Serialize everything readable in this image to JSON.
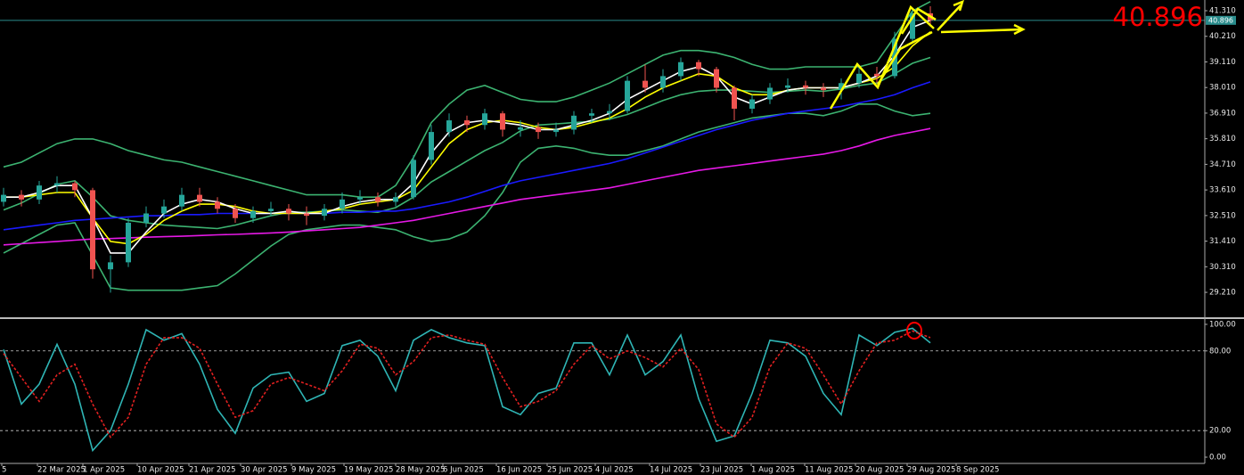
{
  "chart_data": [
    {
      "type": "candlestick",
      "up_color": "#26a69a",
      "down_color": "#ef5350",
      "candles": [
        [
          33.1,
          33.7,
          32.9,
          33.4
        ],
        [
          33.4,
          33.6,
          32.9,
          33.2
        ],
        [
          33.2,
          34.0,
          33.0,
          33.8
        ],
        [
          33.8,
          34.2,
          33.5,
          33.9
        ],
        [
          33.9,
          34.0,
          33.3,
          33.6
        ],
        [
          33.6,
          33.7,
          29.8,
          30.2
        ],
        [
          30.2,
          30.8,
          29.2,
          30.5
        ],
        [
          30.5,
          32.4,
          30.3,
          32.2
        ],
        [
          32.2,
          32.9,
          32.0,
          32.6
        ],
        [
          32.6,
          33.2,
          32.4,
          32.9
        ],
        [
          32.9,
          33.7,
          32.7,
          33.4
        ],
        [
          33.4,
          33.7,
          32.9,
          33.1
        ],
        [
          33.1,
          33.3,
          32.6,
          32.8
        ],
        [
          32.8,
          33.0,
          32.2,
          32.4
        ],
        [
          32.4,
          32.9,
          32.2,
          32.7
        ],
        [
          32.7,
          33.1,
          32.5,
          32.8
        ],
        [
          32.8,
          33.0,
          32.3,
          32.6
        ],
        [
          32.6,
          32.9,
          32.1,
          32.5
        ],
        [
          32.5,
          33.0,
          32.3,
          32.8
        ],
        [
          32.8,
          33.5,
          32.6,
          33.2
        ],
        [
          33.2,
          33.6,
          33.0,
          33.3
        ],
        [
          33.3,
          33.5,
          32.9,
          33.1
        ],
        [
          33.1,
          33.5,
          32.9,
          33.3
        ],
        [
          33.3,
          35.1,
          33.2,
          34.9
        ],
        [
          34.9,
          36.4,
          34.7,
          36.1
        ],
        [
          36.1,
          36.9,
          35.9,
          36.6
        ],
        [
          36.6,
          36.8,
          36.1,
          36.4
        ],
        [
          36.4,
          37.1,
          36.2,
          36.9
        ],
        [
          36.9,
          37.0,
          35.9,
          36.2
        ],
        [
          36.2,
          36.6,
          35.9,
          36.3
        ],
        [
          36.3,
          36.5,
          35.8,
          36.1
        ],
        [
          36.1,
          36.5,
          35.9,
          36.2
        ],
        [
          36.2,
          37.0,
          36.0,
          36.8
        ],
        [
          36.8,
          37.1,
          36.5,
          36.9
        ],
        [
          36.9,
          37.3,
          36.6,
          37.0
        ],
        [
          37.0,
          38.5,
          36.9,
          38.3
        ],
        [
          38.3,
          39.0,
          37.8,
          38.0
        ],
        [
          38.0,
          38.8,
          37.8,
          38.5
        ],
        [
          38.5,
          39.3,
          38.3,
          39.1
        ],
        [
          39.1,
          39.2,
          38.5,
          38.8
        ],
        [
          38.8,
          38.9,
          37.8,
          38.0
        ],
        [
          38.0,
          38.1,
          36.6,
          37.1
        ],
        [
          37.1,
          37.7,
          36.9,
          37.5
        ],
        [
          37.5,
          38.2,
          37.3,
          38.0
        ],
        [
          38.0,
          38.4,
          37.8,
          38.1
        ],
        [
          38.1,
          38.3,
          37.7,
          38.0
        ],
        [
          38.0,
          38.2,
          37.6,
          37.9
        ],
        [
          37.9,
          38.4,
          37.5,
          38.2
        ],
        [
          38.2,
          38.9,
          38.0,
          38.6
        ],
        [
          38.6,
          38.9,
          38.2,
          38.5
        ],
        [
          38.5,
          40.4,
          38.4,
          40.1
        ],
        [
          40.1,
          41.4,
          39.9,
          41.2
        ],
        [
          41.2,
          41.5,
          40.7,
          40.9
        ]
      ],
      "series": [
        {
          "color": "#3cb371",
          "values": [
            34.6,
            34.8,
            35.2,
            35.6,
            35.8,
            35.8,
            35.6,
            35.3,
            35.1,
            34.9,
            34.8,
            34.6,
            34.4,
            34.2,
            34.0,
            33.8,
            33.6,
            33.4,
            33.4,
            33.4,
            33.3,
            33.3,
            33.8,
            35.0,
            36.5,
            37.3,
            37.9,
            38.1,
            37.8,
            37.5,
            37.4,
            37.4,
            37.6,
            37.9,
            38.2,
            38.6,
            39.0,
            39.4,
            39.6,
            39.6,
            39.5,
            39.3,
            39.0,
            38.8,
            38.8,
            38.9,
            38.9,
            38.9,
            38.9,
            39.1,
            40.2,
            41.3,
            41.7
          ]
        },
        {
          "color": "#3cb371",
          "values": [
            32.75,
            33.05,
            33.45,
            33.85,
            34.0,
            33.3,
            32.5,
            32.3,
            32.2,
            32.1,
            32.05,
            32.0,
            31.95,
            32.1,
            32.3,
            32.5,
            32.65,
            32.65,
            32.7,
            32.75,
            32.7,
            32.65,
            32.85,
            33.3,
            33.95,
            34.4,
            34.85,
            35.3,
            35.65,
            36.15,
            36.4,
            36.45,
            36.5,
            36.55,
            36.65,
            36.85,
            37.15,
            37.45,
            37.7,
            37.85,
            37.9,
            37.9,
            37.85,
            37.8,
            37.85,
            37.9,
            37.85,
            37.95,
            38.1,
            38.2,
            38.6,
            39.05,
            39.3
          ]
        },
        {
          "color": "#3cb371",
          "values": [
            30.9,
            31.3,
            31.7,
            32.1,
            32.2,
            30.8,
            29.4,
            29.3,
            29.3,
            29.3,
            29.3,
            29.4,
            29.5,
            30.0,
            30.6,
            31.2,
            31.7,
            31.9,
            32.0,
            32.1,
            32.1,
            32.0,
            31.9,
            31.6,
            31.4,
            31.5,
            31.8,
            32.5,
            33.5,
            34.8,
            35.4,
            35.5,
            35.4,
            35.2,
            35.1,
            35.1,
            35.3,
            35.5,
            35.8,
            36.1,
            36.3,
            36.5,
            36.7,
            36.8,
            36.9,
            36.9,
            36.8,
            37.0,
            37.3,
            37.3,
            37.0,
            36.8,
            36.9
          ]
        },
        {
          "color": "#e619e6",
          "values": [
            31.25,
            31.3,
            31.35,
            31.4,
            31.45,
            31.5,
            31.52,
            31.55,
            31.58,
            31.6,
            31.62,
            31.65,
            31.68,
            31.7,
            31.73,
            31.76,
            31.8,
            31.85,
            31.9,
            31.95,
            32.0,
            32.1,
            32.2,
            32.3,
            32.45,
            32.6,
            32.75,
            32.9,
            33.05,
            33.2,
            33.3,
            33.4,
            33.5,
            33.6,
            33.7,
            33.85,
            34.0,
            34.15,
            34.3,
            34.45,
            34.55,
            34.65,
            34.75,
            34.85,
            34.95,
            35.05,
            35.15,
            35.3,
            35.5,
            35.75,
            35.95,
            36.1,
            36.25
          ]
        },
        {
          "color": "#1a1aff",
          "values": [
            31.9,
            32.0,
            32.1,
            32.2,
            32.3,
            32.35,
            32.4,
            32.45,
            32.5,
            32.5,
            32.55,
            32.55,
            32.6,
            32.6,
            32.6,
            32.6,
            32.6,
            32.6,
            32.6,
            32.65,
            32.65,
            32.7,
            32.7,
            32.8,
            32.95,
            33.1,
            33.3,
            33.55,
            33.8,
            34.0,
            34.15,
            34.3,
            34.45,
            34.6,
            34.75,
            34.95,
            35.2,
            35.45,
            35.7,
            35.95,
            36.2,
            36.4,
            36.6,
            36.75,
            36.9,
            37.0,
            37.1,
            37.2,
            37.35,
            37.5,
            37.7,
            38.0,
            38.25
          ]
        },
        {
          "color": "#ffff00",
          "values": [
            33.3,
            33.3,
            33.4,
            33.5,
            33.5,
            32.4,
            31.4,
            31.3,
            31.7,
            32.3,
            32.7,
            33.0,
            33.0,
            32.9,
            32.7,
            32.6,
            32.6,
            32.6,
            32.7,
            32.8,
            33.0,
            33.1,
            33.2,
            33.6,
            34.6,
            35.6,
            36.2,
            36.5,
            36.6,
            36.5,
            36.3,
            36.2,
            36.3,
            36.5,
            36.7,
            37.1,
            37.6,
            38.0,
            38.3,
            38.6,
            38.5,
            38.0,
            37.7,
            37.7,
            37.9,
            38.0,
            38.0,
            38.0,
            38.2,
            38.4,
            38.9,
            39.8,
            40.4
          ]
        },
        {
          "color": "#ffffff",
          "values": [
            33.3,
            33.3,
            33.5,
            33.8,
            33.8,
            32.4,
            30.9,
            30.9,
            31.8,
            32.6,
            33.0,
            33.2,
            33.1,
            32.8,
            32.6,
            32.6,
            32.7,
            32.6,
            32.6,
            32.9,
            33.1,
            33.2,
            33.2,
            33.9,
            35.2,
            36.1,
            36.5,
            36.6,
            36.5,
            36.4,
            36.2,
            36.2,
            36.4,
            36.6,
            36.9,
            37.5,
            37.9,
            38.3,
            38.7,
            38.9,
            38.5,
            37.6,
            37.3,
            37.6,
            37.9,
            38.0,
            38.0,
            38.0,
            38.2,
            38.5,
            39.4,
            40.6,
            40.9
          ]
        }
      ],
      "current_price": {
        "value": 40.896,
        "label": "40.896"
      },
      "price_line_color": "#2a8c8c",
      "xlim": [
        -0.2,
        67.4
      ],
      "xticks": [
        {
          "value": -0.1,
          "label": "5"
        },
        {
          "value": 1.9,
          "label": "22 Mar 2025"
        },
        {
          "value": 4.45,
          "label": "1 Apr 2025"
        },
        {
          "value": 7.5,
          "label": "10 Apr 2025"
        },
        {
          "value": 10.4,
          "label": "21 Apr 2025"
        },
        {
          "value": 13.3,
          "label": "30 Apr 2025"
        },
        {
          "value": 16.15,
          "label": "9 May 2025"
        },
        {
          "value": 19.1,
          "label": "19 May 2025"
        },
        {
          "value": 22,
          "label": "28 May 2025"
        },
        {
          "value": 24.65,
          "label": "6 Jun 2025"
        },
        {
          "value": 27.65,
          "label": "16 Jun 2025"
        },
        {
          "value": 30.5,
          "label": "25 Jun 2025"
        },
        {
          "value": 33.2,
          "label": "4 Jul 2025"
        },
        {
          "value": 36.25,
          "label": "14 Jul 2025"
        },
        {
          "value": 39.1,
          "label": "23 Jul 2025"
        },
        {
          "value": 41.95,
          "label": "1 Aug 2025"
        },
        {
          "value": 44.95,
          "label": "11 Aug 2025"
        },
        {
          "value": 47.8,
          "label": "20 Aug 2025"
        },
        {
          "value": 50.7,
          "label": "29 Aug 2025"
        },
        {
          "value": 53.45,
          "label": "8 Sep 2025"
        }
      ],
      "ylim": [
        28.14,
        41.77
      ],
      "yticks": [
        {
          "value": 41.31,
          "label": "41.310"
        },
        {
          "value": 40.21,
          "label": "40.210"
        },
        {
          "value": 39.11,
          "label": "39.110"
        },
        {
          "value": 38.01,
          "label": "38.010"
        },
        {
          "value": 36.91,
          "label": "36.910"
        },
        {
          "value": 35.81,
          "label": "35.810"
        },
        {
          "value": 34.71,
          "label": "34.710"
        },
        {
          "value": 33.61,
          "label": "33.610"
        },
        {
          "value": 32.51,
          "label": "32.510"
        },
        {
          "value": 31.41,
          "label": "31.410"
        },
        {
          "value": 30.31,
          "label": "30.310"
        },
        {
          "value": 29.21,
          "label": "29.210"
        }
      ]
    },
    {
      "type": "line",
      "series": [
        {
          "color": "#2fb5b5",
          "values": [
            81,
            40,
            55,
            85,
            55,
            5,
            20,
            55,
            96,
            88,
            93,
            70,
            36,
            18,
            52,
            62,
            64,
            42,
            48,
            84,
            88,
            76,
            50,
            88,
            96,
            90,
            86,
            84,
            38,
            32,
            48,
            52,
            86,
            86,
            62,
            92,
            62,
            72,
            92,
            44,
            12,
            16,
            48,
            88,
            86,
            76,
            48,
            32,
            92,
            84,
            94,
            97,
            86
          ]
        },
        {
          "color": "#e02020",
          "dashed": true,
          "values": [
            78,
            60,
            42,
            62,
            70,
            40,
            15,
            30,
            70,
            90,
            90,
            82,
            55,
            30,
            35,
            55,
            60,
            55,
            50,
            65,
            85,
            82,
            62,
            72,
            90,
            92,
            88,
            85,
            60,
            38,
            42,
            50,
            70,
            84,
            74,
            80,
            75,
            68,
            82,
            66,
            25,
            15,
            30,
            68,
            86,
            82,
            62,
            40,
            65,
            86,
            88,
            95,
            90
          ]
        }
      ],
      "levels": [
        80,
        20
      ],
      "ylim": [
        -4.7,
        104.0
      ],
      "yticks": [
        {
          "value": 100,
          "label": "100.00"
        },
        {
          "value": 80,
          "label": "80.00"
        },
        {
          "value": 20,
          "label": "20.00"
        },
        {
          "value": 0,
          "label": "0.00"
        }
      ]
    }
  ]
}
